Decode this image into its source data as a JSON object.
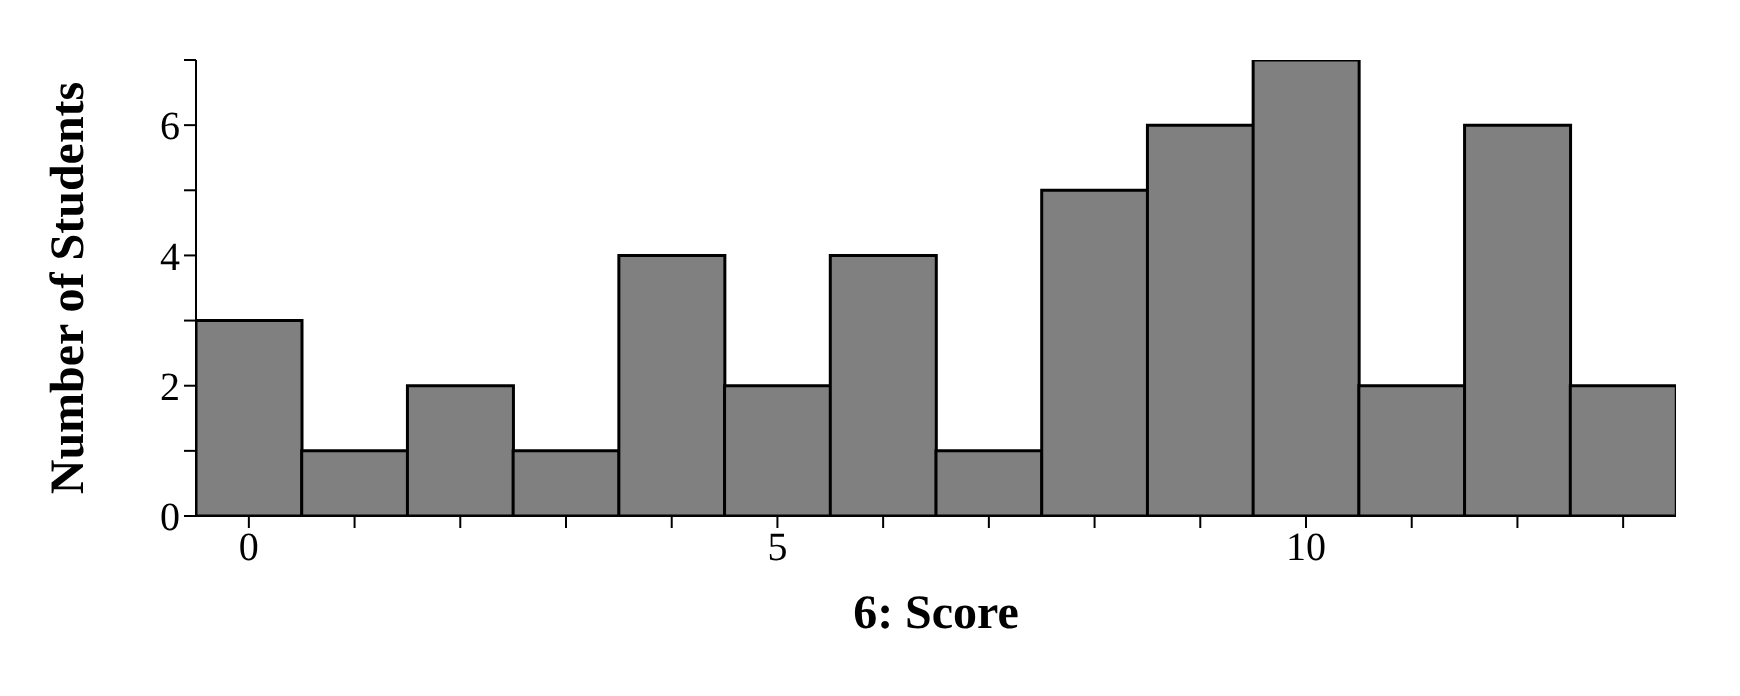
{
  "chart_data": {
    "type": "histogram",
    "xlabel": "6: Score",
    "ylabel": "Number of Students",
    "bins": [
      -0.5,
      0.5,
      1.5,
      2.5,
      3.5,
      4.5,
      5.5,
      6.5,
      7.5,
      8.5,
      9.5,
      10.5,
      11.5,
      12.5,
      13.5
    ],
    "values": [
      3,
      1,
      2,
      1,
      4,
      2,
      4,
      1,
      5,
      6,
      7,
      2,
      6,
      2
    ],
    "color": "#808080",
    "xlim": [
      -0.5,
      13.5
    ],
    "xticks": [
      0,
      {
        "value": 1,
        "label": null
      },
      {
        "value": 2,
        "label": null
      },
      {
        "value": 3,
        "label": null
      },
      {
        "value": 4,
        "label": null
      },
      5,
      {
        "value": 6,
        "label": null
      },
      {
        "value": 7,
        "label": null
      },
      {
        "value": 8,
        "label": null
      },
      {
        "value": 9,
        "label": null
      },
      10,
      {
        "value": 11,
        "label": null
      },
      {
        "value": 12,
        "label": null
      },
      {
        "value": 13,
        "label": null
      }
    ],
    "ylim": [
      0,
      7
    ],
    "yticks": [
      0,
      {
        "value": 1,
        "label": null
      },
      2,
      {
        "value": 3,
        "label": null
      },
      4,
      {
        "value": 5,
        "label": null
      },
      6,
      {
        "value": 7,
        "label": null
      }
    ],
    "grid": false,
    "legend": false
  }
}
